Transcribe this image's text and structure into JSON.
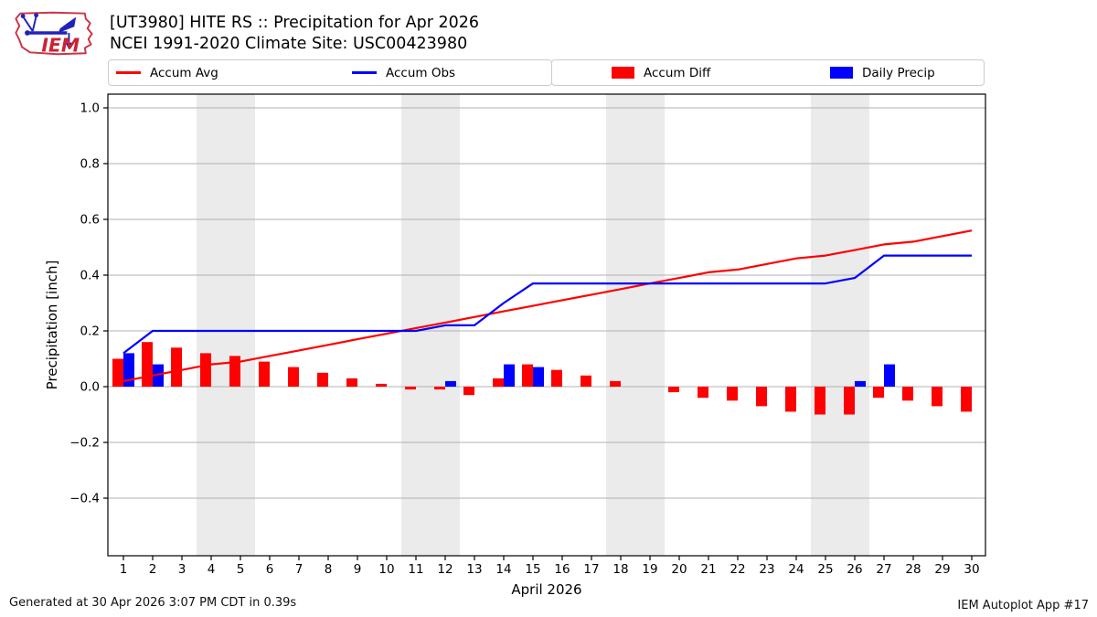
{
  "header": {
    "title_line1": "[UT3980] HITE RS :: Precipitation for Apr 2026",
    "title_line2": "NCEI 1991-2020 Climate Site: USC00423980",
    "logo_text": "IEM"
  },
  "legend": {
    "boxes": [
      {
        "entries": [
          {
            "label": "Accum Avg",
            "type": "line",
            "color": "#ff0000"
          },
          {
            "label": "Accum Obs",
            "type": "line",
            "color": "#0000ff"
          }
        ]
      },
      {
        "entries": [
          {
            "label": "Accum Diff",
            "type": "patch",
            "color": "#ff0000"
          },
          {
            "label": "Daily Precip",
            "type": "patch",
            "color": "#0000ff"
          }
        ]
      }
    ]
  },
  "footer": {
    "left": "Generated at 30 Apr 2026 3:07 PM CDT in 0.39s",
    "right": "IEM Autoplot App #17"
  },
  "chart_data": {
    "type": "line+bar",
    "title": "[UT3980] HITE RS :: Precipitation for Apr 2026",
    "subtitle": "NCEI 1991-2020 Climate Site: USC00423980",
    "xlabel": "April 2026",
    "ylabel": "Precipitation [inch]",
    "x": [
      1,
      2,
      3,
      4,
      5,
      6,
      7,
      8,
      9,
      10,
      11,
      12,
      13,
      14,
      15,
      16,
      17,
      18,
      19,
      20,
      21,
      22,
      23,
      24,
      25,
      26,
      27,
      28,
      29,
      30
    ],
    "yticks": [
      1.0,
      0.8,
      0.6,
      0.4,
      0.2,
      0.0,
      -0.2,
      -0.4
    ],
    "ylim": [
      -0.61,
      1.05
    ],
    "grid": true,
    "legend_position": "top",
    "weekend_bands": [
      [
        3.5,
        5.5
      ],
      [
        10.5,
        12.5
      ],
      [
        17.5,
        19.5
      ],
      [
        24.5,
        26.5
      ]
    ],
    "series": [
      {
        "name": "Accum Avg",
        "type": "line",
        "color": "#ff0000",
        "values": [
          0.02,
          0.04,
          0.06,
          0.08,
          0.09,
          0.11,
          0.13,
          0.15,
          0.17,
          0.19,
          0.21,
          0.23,
          0.25,
          0.27,
          0.29,
          0.31,
          0.33,
          0.35,
          0.37,
          0.39,
          0.41,
          0.42,
          0.44,
          0.46,
          0.47,
          0.49,
          0.51,
          0.52,
          0.54,
          0.56
        ]
      },
      {
        "name": "Accum Obs",
        "type": "line",
        "color": "#0000ff",
        "values": [
          0.12,
          0.2,
          0.2,
          0.2,
          0.2,
          0.2,
          0.2,
          0.2,
          0.2,
          0.2,
          0.2,
          0.22,
          0.22,
          0.3,
          0.37,
          0.37,
          0.37,
          0.37,
          0.37,
          0.37,
          0.37,
          0.37,
          0.37,
          0.37,
          0.37,
          0.39,
          0.47,
          0.47,
          0.47,
          0.47
        ]
      },
      {
        "name": "Accum Diff",
        "type": "bar",
        "color": "#ff0000",
        "values": [
          0.1,
          0.16,
          0.14,
          0.12,
          0.11,
          0.09,
          0.07,
          0.05,
          0.03,
          0.01,
          -0.01,
          -0.01,
          -0.03,
          0.03,
          0.08,
          0.06,
          0.04,
          0.02,
          0,
          -0.02,
          -0.04,
          -0.05,
          -0.07,
          -0.09,
          -0.1,
          -0.1,
          -0.04,
          -0.05,
          -0.07,
          -0.09
        ]
      },
      {
        "name": "Daily Precip",
        "type": "bar",
        "color": "#0000ff",
        "values": [
          0.12,
          0.08,
          0,
          0,
          0,
          0,
          0,
          0,
          0,
          0,
          0,
          0.02,
          0,
          0.08,
          0.07,
          0,
          0,
          0,
          0,
          0,
          0,
          0,
          0,
          0,
          0,
          0.02,
          0.08,
          0,
          0,
          0
        ]
      }
    ],
    "colors": {
      "weekend_band": "#ebebeb",
      "grid": "#b0b0b0",
      "frame": "#000000",
      "background": "#ffffff",
      "logo_red": "#cc3344",
      "logo_blue": "#2222bb"
    }
  }
}
